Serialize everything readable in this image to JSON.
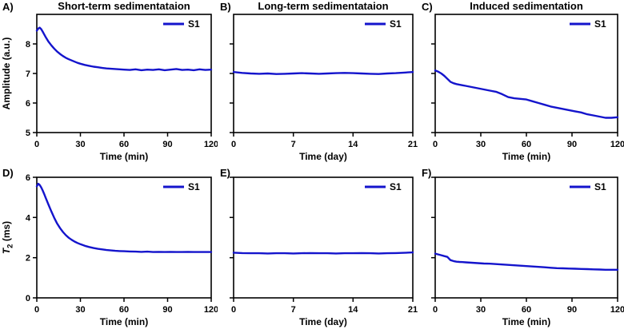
{
  "figure": {
    "background": "#ffffff",
    "row_titles": [
      "Short-term sedimentataion",
      "Long-term sedimentataion",
      "Induced sedimentation"
    ]
  },
  "colors": {
    "line": "#1414cc",
    "axis": "#000000",
    "background": "#ffffff"
  },
  "chart_data": [
    {
      "type": "line",
      "panel": "A)",
      "title": "Short-term sedimentataion",
      "xlabel": "Time (min)",
      "ylabel": [
        {
          "text": "Amplitude (a.u.)"
        }
      ],
      "legend": "S1",
      "xlim": [
        0,
        120
      ],
      "ylim": [
        5,
        9
      ],
      "xticks": [
        0,
        30,
        60,
        90,
        120
      ],
      "yticks": [
        5,
        6,
        7,
        8
      ],
      "show_ytick_labels": true,
      "x": [
        0,
        1,
        2,
        3,
        4,
        5,
        6,
        8,
        10,
        12,
        14,
        16,
        18,
        20,
        22,
        24,
        26,
        28,
        30,
        33,
        36,
        39,
        42,
        45,
        48,
        51,
        54,
        57,
        60,
        64,
        68,
        72,
        76,
        80,
        84,
        88,
        92,
        96,
        100,
        104,
        108,
        112,
        116,
        120
      ],
      "y": [
        8.45,
        8.52,
        8.55,
        8.5,
        8.42,
        8.33,
        8.24,
        8.08,
        7.95,
        7.84,
        7.74,
        7.66,
        7.59,
        7.53,
        7.48,
        7.44,
        7.4,
        7.36,
        7.33,
        7.29,
        7.26,
        7.23,
        7.21,
        7.19,
        7.17,
        7.16,
        7.15,
        7.14,
        7.13,
        7.12,
        7.14,
        7.11,
        7.13,
        7.12,
        7.14,
        7.11,
        7.13,
        7.15,
        7.12,
        7.13,
        7.11,
        7.14,
        7.12,
        7.13
      ]
    },
    {
      "type": "line",
      "panel": "B)",
      "title": "Long-term sedimentataion",
      "xlabel": "Time (day)",
      "ylabel": null,
      "legend": "S1",
      "xlim": [
        0,
        21
      ],
      "ylim": [
        5,
        9
      ],
      "xticks": [
        0,
        7,
        14,
        21
      ],
      "yticks": [
        5,
        6,
        7,
        8
      ],
      "show_ytick_labels": false,
      "x": [
        0,
        1,
        2,
        3,
        4,
        5,
        6,
        7,
        8,
        9,
        10,
        11,
        12,
        13,
        14,
        15,
        16,
        17,
        18,
        19,
        20,
        21
      ],
      "y": [
        7.05,
        7.02,
        7.0,
        6.99,
        7.0,
        6.98,
        6.99,
        7.0,
        7.01,
        7.0,
        6.99,
        7.0,
        7.01,
        7.02,
        7.01,
        7.0,
        6.99,
        6.98,
        7.0,
        7.01,
        7.03,
        7.05
      ]
    },
    {
      "type": "line",
      "panel": "C)",
      "title": "Induced sedimentation",
      "xlabel": "Time (min)",
      "ylabel": null,
      "legend": "S1",
      "xlim": [
        0,
        120
      ],
      "ylim": [
        5,
        9
      ],
      "xticks": [
        0,
        30,
        60,
        90,
        120
      ],
      "yticks": [
        5,
        6,
        7,
        8
      ],
      "show_ytick_labels": false,
      "x": [
        0,
        2,
        4,
        6,
        8,
        10,
        12,
        14,
        16,
        18,
        20,
        24,
        28,
        32,
        36,
        40,
        44,
        48,
        52,
        56,
        60,
        64,
        68,
        72,
        76,
        80,
        84,
        88,
        92,
        96,
        100,
        104,
        108,
        112,
        116,
        120
      ],
      "y": [
        7.1,
        7.06,
        7.0,
        6.92,
        6.82,
        6.72,
        6.67,
        6.64,
        6.62,
        6.6,
        6.58,
        6.54,
        6.5,
        6.46,
        6.42,
        6.38,
        6.3,
        6.2,
        6.16,
        6.14,
        6.12,
        6.06,
        6.0,
        5.94,
        5.88,
        5.84,
        5.8,
        5.76,
        5.72,
        5.68,
        5.62,
        5.58,
        5.54,
        5.5,
        5.5,
        5.52
      ]
    },
    {
      "type": "line",
      "panel": "D)",
      "title": null,
      "xlabel": "Time (min)",
      "ylabel": [
        {
          "text": "T",
          "italic": true
        },
        {
          "text": "2",
          "sub": true
        },
        {
          "text": " (ms)"
        }
      ],
      "legend": "S1",
      "xlim": [
        0,
        120
      ],
      "ylim": [
        0,
        6
      ],
      "xticks": [
        0,
        30,
        60,
        90,
        120
      ],
      "yticks": [
        0,
        2,
        4,
        6
      ],
      "show_ytick_labels": true,
      "x": [
        0,
        1,
        2,
        3,
        4,
        5,
        6,
        8,
        10,
        12,
        14,
        16,
        18,
        20,
        22,
        24,
        26,
        28,
        30,
        33,
        36,
        39,
        42,
        45,
        48,
        51,
        54,
        57,
        60,
        64,
        68,
        72,
        76,
        80,
        84,
        88,
        92,
        96,
        100,
        104,
        108,
        112,
        116,
        120
      ],
      "y": [
        5.55,
        5.68,
        5.62,
        5.5,
        5.35,
        5.18,
        5.0,
        4.65,
        4.3,
        3.98,
        3.7,
        3.47,
        3.28,
        3.12,
        2.99,
        2.89,
        2.8,
        2.73,
        2.67,
        2.59,
        2.53,
        2.48,
        2.44,
        2.41,
        2.38,
        2.36,
        2.34,
        2.33,
        2.32,
        2.31,
        2.3,
        2.29,
        2.3,
        2.28,
        2.29,
        2.28,
        2.29,
        2.28,
        2.28,
        2.29,
        2.28,
        2.28,
        2.28,
        2.28
      ]
    },
    {
      "type": "line",
      "panel": "E)",
      "title": null,
      "xlabel": "Time (day)",
      "ylabel": null,
      "legend": "S1",
      "xlim": [
        0,
        21
      ],
      "ylim": [
        0,
        6
      ],
      "xticks": [
        0,
        7,
        14,
        21
      ],
      "yticks": [
        0,
        2,
        4,
        6
      ],
      "show_ytick_labels": false,
      "x": [
        0,
        1,
        2,
        3,
        4,
        5,
        6,
        7,
        8,
        9,
        10,
        11,
        12,
        13,
        14,
        15,
        16,
        17,
        18,
        19,
        20,
        21
      ],
      "y": [
        2.25,
        2.23,
        2.22,
        2.22,
        2.21,
        2.22,
        2.22,
        2.21,
        2.22,
        2.23,
        2.22,
        2.22,
        2.21,
        2.22,
        2.22,
        2.23,
        2.22,
        2.21,
        2.22,
        2.23,
        2.24,
        2.26
      ]
    },
    {
      "type": "line",
      "panel": "F)",
      "title": null,
      "xlabel": "Time (min)",
      "ylabel": null,
      "legend": "S1",
      "xlim": [
        0,
        120
      ],
      "ylim": [
        0,
        6
      ],
      "xticks": [
        0,
        30,
        60,
        90,
        120
      ],
      "yticks": [
        0,
        2,
        4,
        6
      ],
      "show_ytick_labels": false,
      "x": [
        0,
        2,
        4,
        6,
        8,
        10,
        12,
        14,
        16,
        18,
        20,
        24,
        28,
        32,
        36,
        40,
        44,
        48,
        52,
        56,
        60,
        64,
        68,
        72,
        76,
        80,
        84,
        88,
        92,
        96,
        100,
        104,
        108,
        112,
        116,
        120
      ],
      "y": [
        2.2,
        2.16,
        2.12,
        2.08,
        2.04,
        1.88,
        1.83,
        1.8,
        1.79,
        1.78,
        1.77,
        1.75,
        1.73,
        1.71,
        1.7,
        1.68,
        1.66,
        1.64,
        1.62,
        1.6,
        1.58,
        1.56,
        1.54,
        1.52,
        1.5,
        1.48,
        1.47,
        1.46,
        1.45,
        1.44,
        1.43,
        1.42,
        1.41,
        1.4,
        1.4,
        1.4
      ]
    }
  ]
}
